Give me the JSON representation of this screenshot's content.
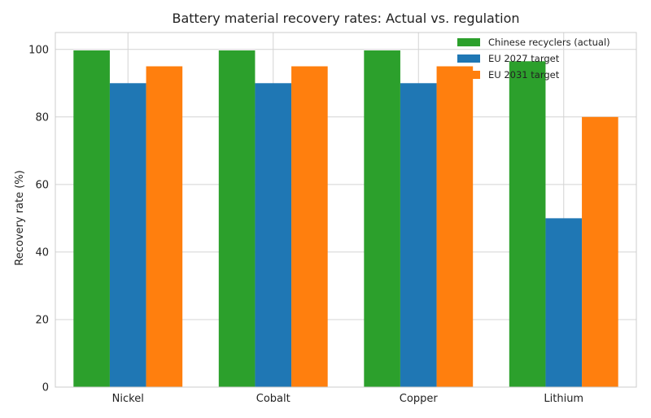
{
  "chart_data": {
    "type": "bar",
    "title": "Battery material recovery rates: Actual vs. regulation",
    "xlabel": "",
    "ylabel": "Recovery rate (%)",
    "categories": [
      "Nickel",
      "Cobalt",
      "Copper",
      "Lithium"
    ],
    "series": [
      {
        "name": "Chinese recyclers (actual)",
        "values": [
          99.7,
          99.7,
          99.7,
          96.5
        ],
        "color": "#2ca02c"
      },
      {
        "name": "EU 2027 target",
        "values": [
          90,
          90,
          90,
          50
        ],
        "color": "#1f77b4"
      },
      {
        "name": "EU 2031 target",
        "values": [
          95,
          95,
          95,
          80
        ],
        "color": "#ff7f0e"
      }
    ],
    "ylim": [
      0,
      105
    ],
    "yticks": [
      0,
      20,
      40,
      60,
      80,
      100
    ],
    "grid": true,
    "legend_position": "top-right"
  }
}
